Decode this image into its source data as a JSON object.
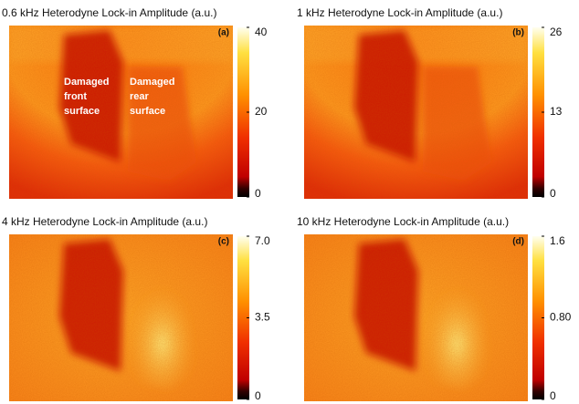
{
  "chart_data": [
    {
      "type": "heatmap",
      "title": "0.6 kHz Heterodyne Lock-in Amplitude (a.u.)",
      "panel_label": "(a)",
      "annotations": [
        [
          "Damaged",
          "front",
          "surface"
        ],
        [
          "Damaged",
          "rear",
          "surface"
        ]
      ],
      "clim": [
        0,
        40
      ],
      "cticks": [
        0,
        20,
        40
      ]
    },
    {
      "type": "heatmap",
      "title": "1 kHz Heterodyne Lock-in Amplitude (a.u.)",
      "panel_label": "(b)",
      "clim": [
        0,
        26
      ],
      "cticks": [
        0,
        13,
        26
      ]
    },
    {
      "type": "heatmap",
      "title": "4 kHz Heterodyne Lock-in Amplitude (a.u.)",
      "panel_label": "(c)",
      "clim": [
        0,
        7
      ],
      "cticks": [
        0,
        3.5,
        {
          "value": 7,
          "label": "7.0"
        }
      ]
    },
    {
      "type": "heatmap",
      "title": "10 kHz Heterodyne Lock-in Amplitude (a.u.)",
      "panel_label": "(d)",
      "clim": [
        0,
        1.6
      ],
      "cticks": [
        0,
        {
          "value": 0.8,
          "label": "0.80"
        },
        1.6
      ]
    }
  ]
}
